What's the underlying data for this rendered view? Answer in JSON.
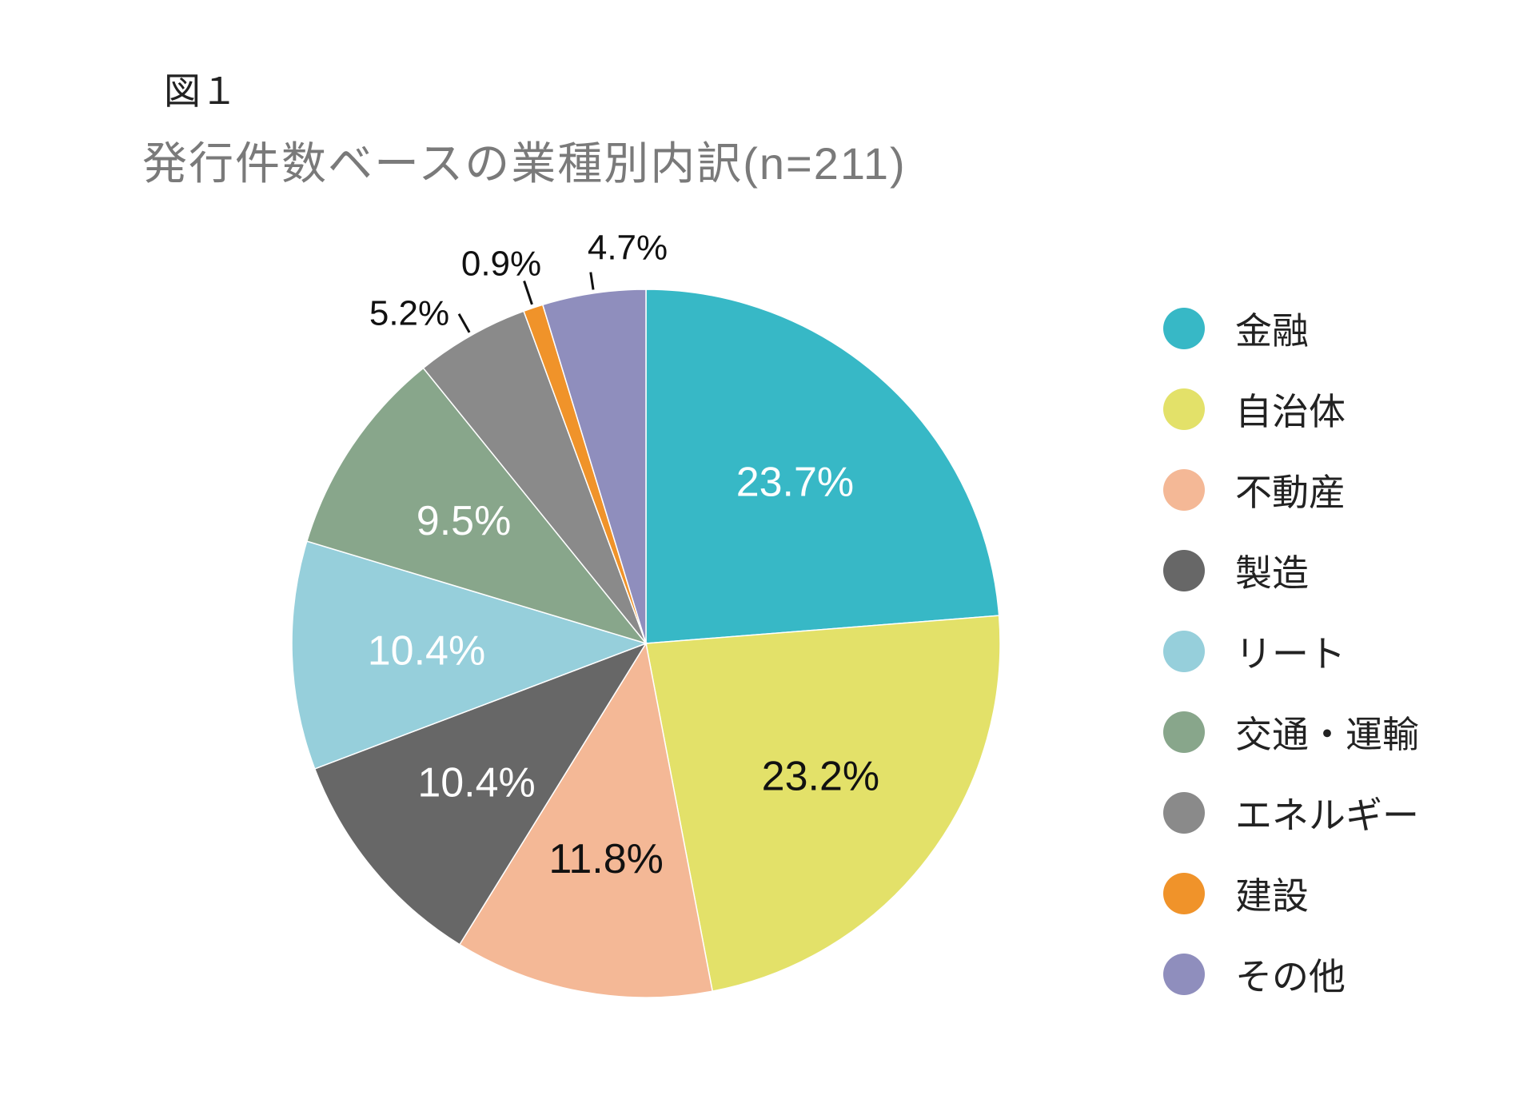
{
  "figure_label": "図１",
  "chart_data": {
    "type": "pie",
    "title": "発行件数ベースの業種別内訳(n=211)",
    "slices": [
      {
        "label": "金融",
        "value": 23.7,
        "display": "23.7%",
        "color": "#37b8c6",
        "label_color": "#ffffff",
        "label_inside": true
      },
      {
        "label": "自治体",
        "value": 23.2,
        "display": "23.2%",
        "color": "#e3e169",
        "label_color": "#111111",
        "label_inside": true
      },
      {
        "label": "不動産",
        "value": 11.8,
        "display": "11.8%",
        "color": "#f4b896",
        "label_color": "#111111",
        "label_inside": true
      },
      {
        "label": "製造",
        "value": 10.4,
        "display": "10.4%",
        "color": "#676767",
        "label_color": "#ffffff",
        "label_inside": true
      },
      {
        "label": "リート",
        "value": 10.4,
        "display": "10.4%",
        "color": "#96cfdb",
        "label_color": "#ffffff",
        "label_inside": true
      },
      {
        "label": "交通・運輸",
        "value": 9.5,
        "display": "9.5%",
        "color": "#88a68b",
        "label_color": "#ffffff",
        "label_inside": true
      },
      {
        "label": "エネルギー",
        "value": 5.2,
        "display": "5.2%",
        "color": "#8a8a8a",
        "label_color": "#111111",
        "label_inside": false
      },
      {
        "label": "建設",
        "value": 0.9,
        "display": "0.9%",
        "color": "#f0932a",
        "label_color": "#111111",
        "label_inside": false
      },
      {
        "label": "その他",
        "value": 4.7,
        "display": "4.7%",
        "color": "#8f8ebd",
        "label_color": "#111111",
        "label_inside": false
      }
    ],
    "start_angle": "12 o'clock",
    "direction": "clockwise",
    "legend_position": "right"
  }
}
